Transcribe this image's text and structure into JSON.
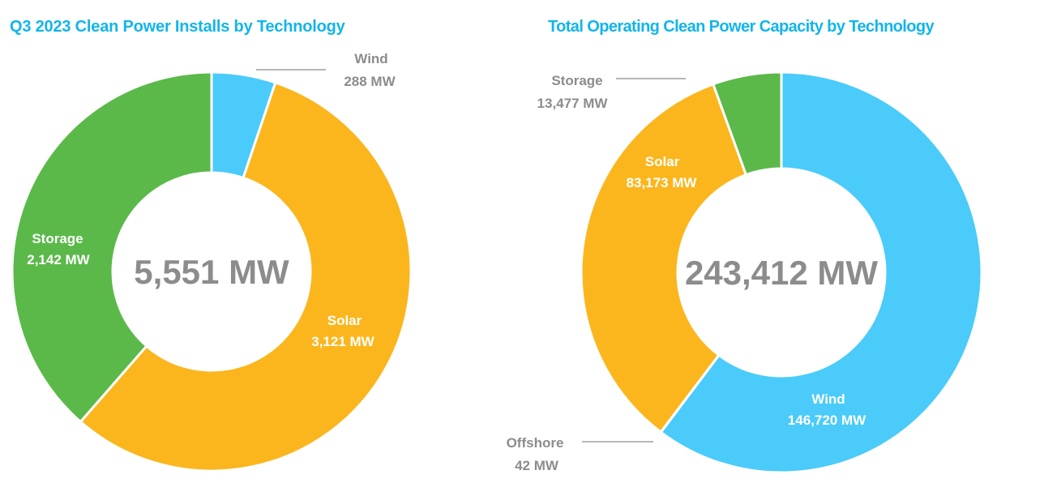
{
  "chart_data": [
    {
      "type": "pie",
      "variant": "donut",
      "title": "Q3 2023 Clean Power Installs by Technology",
      "center_label": "5,551 MW",
      "total": 5551,
      "unit": "MW",
      "slices": [
        {
          "name": "Wind",
          "value": 288,
          "label": "288 MW",
          "color": "#4acbfa",
          "label_position": "outside"
        },
        {
          "name": "Solar",
          "value": 3121,
          "label": "3,121 MW",
          "color": "#fbb61e",
          "label_position": "inside"
        },
        {
          "name": "Storage",
          "value": 2142,
          "label": "2,142 MW",
          "color": "#5bb94a",
          "label_position": "inside"
        }
      ]
    },
    {
      "type": "pie",
      "variant": "donut",
      "title": "Total Operating Clean Power Capacity by Technology",
      "center_label": "243,412 MW",
      "total": 243412,
      "unit": "MW",
      "slices": [
        {
          "name": "Wind",
          "value": 146720,
          "label": "146,720 MW",
          "color": "#4acbfa",
          "label_position": "inside"
        },
        {
          "name": "Offshore",
          "value": 42,
          "label": "42 MW",
          "color": "#1f7fbf",
          "label_position": "outside"
        },
        {
          "name": "Solar",
          "value": 83173,
          "label": "83,173 MW",
          "color": "#fbb61e",
          "label_position": "inside"
        },
        {
          "name": "Storage",
          "value": 13477,
          "label": "13,477 MW",
          "color": "#5bb94a",
          "label_position": "outside"
        }
      ]
    }
  ]
}
